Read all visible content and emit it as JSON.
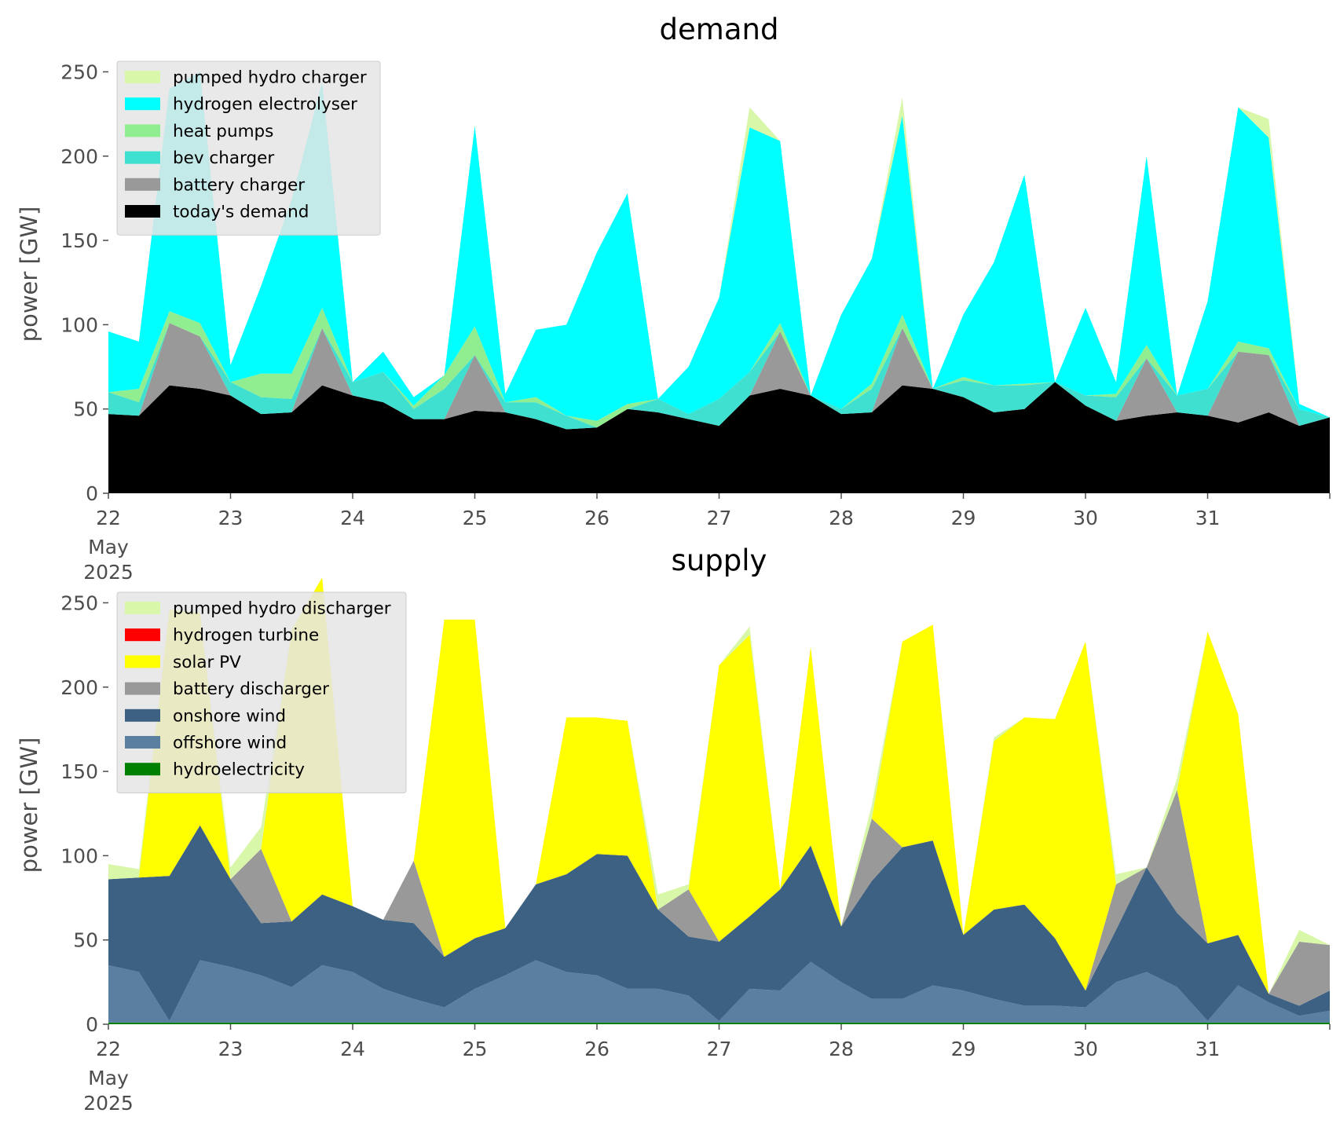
{
  "chart_data": [
    {
      "type": "area",
      "stacked": true,
      "title": "demand",
      "ylabel": "power [GW]",
      "ylim": [
        0,
        260
      ],
      "yticks": [
        0,
        50,
        100,
        150,
        200,
        250
      ],
      "xlim": [
        0,
        240
      ],
      "xtick_labels": [
        "22",
        "23",
        "24",
        "25",
        "26",
        "27",
        "28",
        "29",
        "30",
        "31"
      ],
      "xtick_sub": [
        "May",
        "2025"
      ],
      "grid": false,
      "legend_position": "top-left",
      "x_unit": "hours from 22 May 2025 00:00",
      "x": [
        0,
        6,
        12,
        18,
        24,
        30,
        36,
        42,
        48,
        54,
        60,
        66,
        72,
        78,
        84,
        90,
        96,
        102,
        108,
        114,
        120,
        126,
        132,
        138,
        144,
        150,
        156,
        162,
        168,
        174,
        180,
        186,
        192,
        198,
        204,
        210,
        216,
        222,
        228,
        234,
        240
      ],
      "series": [
        {
          "name": "today's demand",
          "color": "#000000",
          "values": [
            47,
            46,
            64,
            62,
            58,
            47,
            48,
            64,
            58,
            54,
            44,
            44,
            49,
            48,
            44,
            38,
            39,
            50,
            48,
            44,
            40,
            58,
            62,
            58,
            47,
            48,
            64,
            62,
            57,
            48,
            50,
            66,
            52,
            43,
            46,
            48,
            46,
            42,
            48,
            40,
            45
          ]
        },
        {
          "name": "battery charger",
          "color": "#999999",
          "values": [
            0,
            0,
            37,
            31,
            0,
            0,
            0,
            34,
            0,
            0,
            0,
            0,
            33,
            0,
            0,
            0,
            0,
            0,
            0,
            0,
            0,
            0,
            34,
            0,
            0,
            0,
            34,
            0,
            0,
            0,
            0,
            0,
            0,
            0,
            34,
            0,
            0,
            42,
            34,
            0,
            0
          ]
        },
        {
          "name": "bev charger",
          "color": "#40e0d0",
          "values": [
            13,
            8,
            0,
            0,
            8,
            10,
            8,
            0,
            8,
            18,
            6,
            18,
            0,
            6,
            10,
            8,
            0,
            0,
            8,
            3,
            16,
            14,
            0,
            0,
            3,
            14,
            0,
            0,
            10,
            16,
            14,
            0,
            6,
            14,
            0,
            10,
            16,
            0,
            0,
            10,
            0
          ]
        },
        {
          "name": "heat pumps",
          "color": "#90ee90",
          "values": [
            0,
            8,
            7,
            8,
            0,
            14,
            15,
            12,
            0,
            0,
            2,
            8,
            17,
            0,
            3,
            0,
            4,
            3,
            0,
            0,
            0,
            0,
            5,
            0,
            0,
            3,
            8,
            0,
            2,
            0,
            1,
            0,
            0,
            2,
            8,
            0,
            0,
            6,
            4,
            0,
            0
          ]
        },
        {
          "name": "hydrogen electrolyser",
          "color": "#00ffff",
          "values": [
            36,
            28,
            132,
            149,
            10,
            52,
            103,
            134,
            0,
            12,
            5,
            0,
            119,
            5,
            40,
            54,
            100,
            125,
            0,
            28,
            60,
            145,
            108,
            0,
            56,
            74,
            118,
            0,
            37,
            73,
            124,
            0,
            52,
            7,
            112,
            0,
            52,
            139,
            125,
            3,
            0
          ]
        },
        {
          "name": "pumped hydro charger",
          "color": "#d9f7a8",
          "values": [
            0,
            0,
            0,
            0,
            0,
            0,
            0,
            0,
            0,
            0,
            0,
            0,
            0,
            0,
            0,
            0,
            0,
            0,
            0,
            0,
            0,
            12,
            0,
            0,
            0,
            0,
            11,
            0,
            0,
            0,
            0,
            0,
            0,
            0,
            0,
            0,
            0,
            0,
            11,
            0,
            0
          ]
        }
      ]
    },
    {
      "type": "area",
      "stacked": true,
      "title": "supply",
      "ylabel": "power [GW]",
      "ylim": [
        0,
        260
      ],
      "yticks": [
        0,
        50,
        100,
        150,
        200,
        250
      ],
      "xlim": [
        0,
        240
      ],
      "xtick_labels": [
        "22",
        "23",
        "24",
        "25",
        "26",
        "27",
        "28",
        "29",
        "30",
        "31"
      ],
      "xtick_sub": [
        "May",
        "2025"
      ],
      "grid": false,
      "legend_position": "top-left",
      "x_unit": "hours from 22 May 2025 00:00",
      "x": [
        0,
        6,
        12,
        18,
        24,
        30,
        36,
        42,
        48,
        54,
        60,
        66,
        72,
        78,
        84,
        90,
        96,
        102,
        108,
        114,
        120,
        126,
        132,
        138,
        144,
        150,
        156,
        162,
        168,
        174,
        180,
        186,
        192,
        198,
        204,
        210,
        216,
        222,
        228,
        234,
        240
      ],
      "series": [
        {
          "name": "hydroelectricity",
          "color": "#008000",
          "values": [
            1,
            1,
            1,
            1,
            1,
            1,
            1,
            1,
            1,
            1,
            1,
            1,
            1,
            1,
            1,
            1,
            1,
            1,
            1,
            1,
            1,
            1,
            1,
            1,
            1,
            1,
            1,
            1,
            1,
            1,
            1,
            1,
            1,
            1,
            1,
            1,
            1,
            1,
            1,
            1,
            1
          ]
        },
        {
          "name": "offshore wind",
          "color": "#5b7fa1",
          "values": [
            34,
            30,
            1,
            37,
            33,
            28,
            21,
            34,
            30,
            20,
            14,
            9,
            20,
            28,
            37,
            30,
            28,
            20,
            20,
            16,
            1,
            20,
            19,
            36,
            24,
            14,
            14,
            22,
            19,
            14,
            10,
            10,
            9,
            24,
            30,
            21,
            1,
            22,
            12,
            4,
            7
          ]
        },
        {
          "name": "onshore wind",
          "color": "#3d6182",
          "values": [
            51,
            56,
            86,
            80,
            52,
            31,
            39,
            42,
            39,
            41,
            45,
            30,
            30,
            28,
            45,
            58,
            72,
            79,
            47,
            35,
            47,
            43,
            60,
            69,
            33,
            70,
            90,
            86,
            33,
            53,
            60,
            40,
            10,
            31,
            62,
            44,
            46,
            30,
            5,
            6,
            12
          ]
        },
        {
          "name": "battery discharger",
          "color": "#999999",
          "values": [
            0,
            0,
            0,
            0,
            0,
            44,
            0,
            0,
            0,
            0,
            37,
            0,
            0,
            0,
            0,
            0,
            0,
            0,
            0,
            28,
            0,
            0,
            0,
            0,
            0,
            37,
            0,
            0,
            0,
            0,
            0,
            0,
            0,
            27,
            0,
            73,
            0,
            0,
            0,
            38,
            27
          ]
        },
        {
          "name": "solar PV",
          "color": "#ffff00",
          "values": [
            0,
            0,
            158,
            126,
            0,
            0,
            173,
            188,
            0,
            0,
            0,
            200,
            189,
            0,
            0,
            93,
            81,
            80,
            0,
            0,
            164,
            167,
            0,
            118,
            0,
            0,
            122,
            128,
            0,
            100,
            111,
            130,
            207,
            0,
            0,
            0,
            185,
            131,
            0,
            0,
            0
          ]
        },
        {
          "name": "hydrogen turbine",
          "color": "#ff0000",
          "values": [
            0,
            0,
            0,
            0,
            0,
            0,
            0,
            0,
            0,
            0,
            0,
            0,
            0,
            0,
            0,
            0,
            0,
            0,
            0,
            0,
            0,
            0,
            0,
            0,
            0,
            0,
            0,
            0,
            0,
            0,
            0,
            0,
            0,
            0,
            0,
            0,
            0,
            0,
            0,
            0,
            0
          ]
        },
        {
          "name": "pumped hydro discharger",
          "color": "#d9f7a8",
          "values": [
            9,
            5,
            0,
            0,
            7,
            13,
            0,
            0,
            0,
            0,
            0,
            0,
            0,
            0,
            0,
            0,
            0,
            0,
            9,
            3,
            0,
            5,
            0,
            0,
            0,
            8,
            0,
            0,
            0,
            2,
            0,
            0,
            0,
            6,
            0,
            7,
            0,
            0,
            0,
            7,
            0
          ]
        }
      ]
    }
  ]
}
